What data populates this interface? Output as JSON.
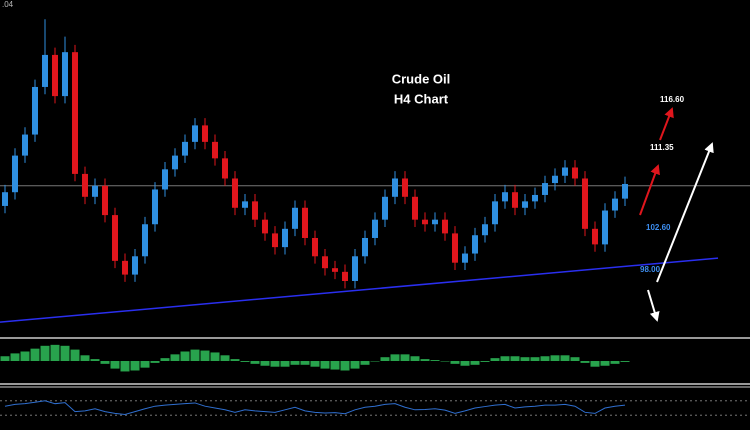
{
  "chart_data": {
    "type": "candlestick",
    "title": "Crude Oil",
    "subtitle": "H4 Chart",
    "corner_label": ".04",
    "up_color": "#2f8fe0",
    "down_color": "#e0161d",
    "ylim": [
      90.9,
      127.5
    ],
    "reference_line": {
      "value": 107.2,
      "color": "#777777"
    },
    "trendline": {
      "values": [
        92.3,
        99.3
      ],
      "color": "#2a2ff0"
    },
    "annotations": [
      {
        "value": 116.6,
        "label": "116.60",
        "color": "#ffffff"
      },
      {
        "value": 111.35,
        "label": "111.35",
        "color": "#ffffff"
      },
      {
        "value": 102.6,
        "label": "102.60",
        "color": "#3d8ef0"
      },
      {
        "value": 98.0,
        "label": "98.00",
        "color": "#3d8ef0"
      }
    ],
    "open": [
      105.0,
      106.5,
      110.5,
      112.8,
      118.0,
      121.5,
      117.0,
      121.8,
      108.5,
      106.0,
      107.2,
      104.0,
      99.0,
      97.5,
      99.5,
      103.0,
      106.8,
      109.0,
      110.5,
      112.0,
      113.8,
      112.0,
      110.2,
      108.0,
      104.8,
      105.5,
      103.5,
      102.0,
      100.5,
      102.5,
      104.8,
      101.5,
      99.5,
      98.2,
      97.8,
      96.8,
      99.5,
      101.5,
      103.5,
      106.0,
      108.0,
      106.0,
      103.5,
      103.0,
      103.5,
      102.0,
      98.8,
      99.8,
      101.8,
      103.0,
      105.5,
      106.5,
      104.8,
      105.5,
      106.2,
      107.5,
      108.3,
      109.2,
      108.0,
      102.5,
      100.8,
      104.5,
      105.8
    ],
    "high": [
      107.3,
      111.3,
      113.6,
      118.8,
      125.4,
      122.3,
      123.5,
      122.6,
      109.3,
      108.0,
      108.0,
      104.8,
      99.8,
      100.3,
      103.8,
      107.6,
      109.8,
      111.3,
      112.8,
      114.6,
      114.6,
      112.8,
      111.0,
      108.8,
      106.3,
      106.3,
      104.3,
      102.8,
      103.3,
      105.6,
      105.6,
      102.3,
      100.3,
      99.0,
      98.6,
      100.3,
      102.3,
      104.3,
      106.8,
      108.8,
      108.8,
      106.8,
      104.3,
      104.3,
      104.3,
      102.8,
      100.6,
      102.6,
      103.8,
      106.3,
      107.3,
      107.3,
      106.3,
      107.0,
      108.3,
      109.1,
      110.0,
      110.0,
      108.8,
      103.3,
      105.3,
      106.6,
      108.2
    ],
    "low": [
      104.2,
      105.7,
      109.7,
      112.0,
      117.2,
      116.2,
      116.2,
      107.7,
      105.2,
      105.2,
      103.2,
      98.2,
      96.7,
      96.7,
      98.7,
      102.2,
      106.0,
      108.2,
      109.7,
      111.2,
      111.2,
      109.4,
      107.2,
      104.0,
      104.0,
      102.7,
      101.2,
      99.7,
      99.7,
      101.7,
      100.7,
      98.7,
      97.4,
      97.0,
      96.0,
      96.0,
      98.7,
      100.7,
      102.7,
      105.2,
      105.2,
      102.7,
      102.2,
      102.2,
      101.2,
      98.0,
      98.0,
      99.0,
      101.0,
      102.2,
      104.7,
      104.0,
      104.0,
      104.7,
      105.4,
      106.7,
      107.5,
      107.2,
      101.7,
      100.0,
      100.0,
      103.7,
      105.0
    ],
    "close": [
      106.5,
      110.5,
      112.8,
      118.0,
      121.5,
      117.0,
      121.8,
      108.5,
      106.0,
      107.2,
      104.0,
      99.0,
      97.5,
      99.5,
      103.0,
      106.8,
      109.0,
      110.5,
      112.0,
      113.8,
      112.0,
      110.2,
      108.0,
      104.8,
      105.5,
      103.5,
      102.0,
      100.5,
      102.5,
      104.8,
      101.5,
      99.5,
      98.2,
      97.8,
      96.8,
      99.5,
      101.5,
      103.5,
      106.0,
      108.0,
      106.0,
      103.5,
      103.0,
      103.5,
      102.0,
      98.8,
      99.8,
      101.8,
      103.0,
      105.5,
      106.5,
      104.8,
      105.5,
      106.2,
      107.5,
      108.3,
      109.2,
      108.0,
      102.5,
      100.8,
      104.5,
      105.8,
      107.4
    ],
    "macd": {
      "color": "#2fbf5a",
      "ylim": [
        -2,
        2
      ],
      "values": [
        0.5,
        0.8,
        1.0,
        1.3,
        1.6,
        1.7,
        1.6,
        1.2,
        0.6,
        0.2,
        -0.3,
        -0.8,
        -1.1,
        -1.0,
        -0.7,
        -0.2,
        0.3,
        0.7,
        1.0,
        1.2,
        1.1,
        0.9,
        0.6,
        0.2,
        -0.1,
        -0.3,
        -0.5,
        -0.6,
        -0.6,
        -0.4,
        -0.4,
        -0.6,
        -0.8,
        -0.9,
        -1.0,
        -0.8,
        -0.4,
        0.0,
        0.4,
        0.7,
        0.7,
        0.5,
        0.2,
        0.1,
        0.0,
        -0.3,
        -0.5,
        -0.4,
        -0.1,
        0.3,
        0.5,
        0.5,
        0.4,
        0.4,
        0.5,
        0.6,
        0.6,
        0.4,
        -0.2,
        -0.6,
        -0.5,
        -0.3,
        -0.1
      ]
    },
    "oscillator": {
      "color": "#2f6fd0",
      "ylim": [
        0,
        100
      ],
      "levels": [
        30,
        70
      ],
      "values": [
        55,
        60,
        62,
        66,
        70,
        62,
        65,
        40,
        42,
        48,
        40,
        35,
        32,
        40,
        48,
        55,
        58,
        60,
        62,
        64,
        55,
        50,
        45,
        38,
        45,
        42,
        40,
        38,
        45,
        52,
        42,
        38,
        36,
        37,
        34,
        45,
        52,
        55,
        60,
        62,
        52,
        45,
        46,
        48,
        44,
        35,
        42,
        50,
        54,
        58,
        60,
        50,
        53,
        55,
        58,
        58,
        60,
        55,
        38,
        35,
        50,
        55,
        58
      ]
    }
  }
}
